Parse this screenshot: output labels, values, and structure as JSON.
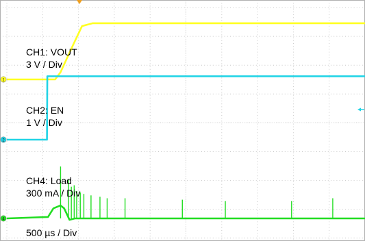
{
  "chart_data": {
    "type": "line",
    "title": "",
    "xlabel": "",
    "ylabel": "",
    "time_scale": "500 µs / Div",
    "grid": true,
    "colors": {
      "ch1": "#ffff22",
      "ch2": "#22d4e6",
      "ch4": "#22dd22",
      "grid": "#c8c8c8",
      "trigger": "#f0a020"
    },
    "series": [
      {
        "id": "ch1",
        "name": "CH1: VOUT",
        "scale": "3 V / Div",
        "marker": "1",
        "x_div": [
          0,
          1.35,
          1.5,
          1.85,
          2.1,
          2.4,
          10
        ],
        "y_div": [
          0,
          0,
          0.25,
          1.2,
          1.85,
          1.95,
          1.95
        ]
      },
      {
        "id": "ch2",
        "name": "CH2: EN",
        "scale": "1 V  / Div",
        "marker": "2",
        "x_div": [
          0,
          1.12,
          1.13,
          10
        ],
        "y_div": [
          0,
          0,
          2.2,
          2.2
        ]
      },
      {
        "id": "ch4",
        "name": "CH4: Load",
        "scale": "300 mA / Div",
        "marker": "4",
        "x_div": [
          0,
          1.15,
          1.3,
          1.5,
          1.6,
          1.75,
          1.9,
          10
        ],
        "y_div": [
          0,
          0.05,
          0.35,
          0.45,
          0.35,
          -0.05,
          0,
          0
        ],
        "spikes_x_div": [
          1.5,
          1.72,
          1.8,
          1.88,
          1.95,
          2.05,
          2.15,
          2.35,
          2.6,
          2.8,
          3.3,
          4.9,
          6.1,
          7.95,
          9.1
        ],
        "spikes_y_div": [
          1.8,
          1.35,
          1.1,
          1.15,
          0.95,
          0.9,
          0.85,
          0.8,
          0.75,
          0.7,
          0.7,
          0.65,
          0.6,
          0.6,
          0.7
        ]
      }
    ]
  }
}
